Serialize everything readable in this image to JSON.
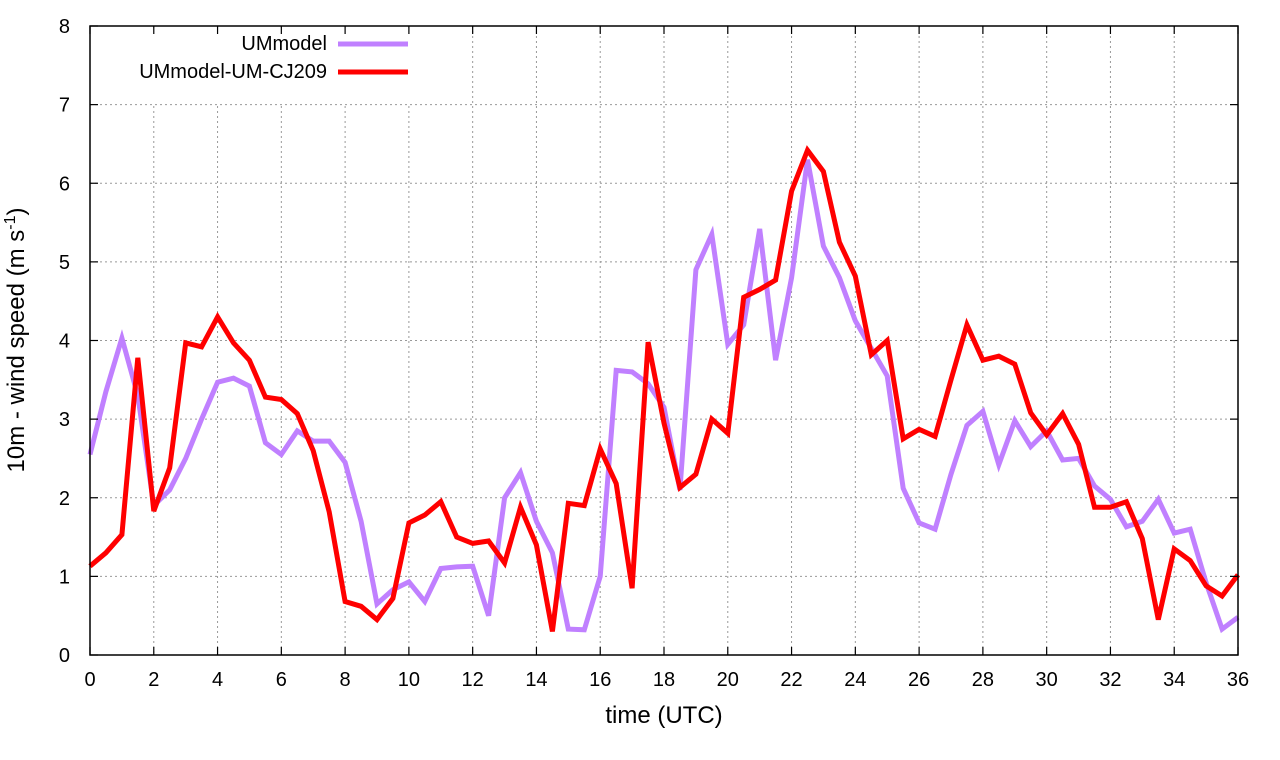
{
  "chart_data": {
    "type": "line",
    "title": "",
    "xlabel": "time (UTC)",
    "ylabel_main": "10m - wind speed  (m s",
    "ylabel_sup": "-1",
    "ylabel_end": ")",
    "xlim": [
      0,
      36
    ],
    "ylim": [
      0,
      8
    ],
    "xticks": [
      "0",
      "2",
      "4",
      "6",
      "8",
      "10",
      "12",
      "14",
      "16",
      "18",
      "20",
      "22",
      "24",
      "26",
      "28",
      "30",
      "32",
      "34",
      "36"
    ],
    "yticks": [
      "0",
      "1",
      "2",
      "3",
      "4",
      "5",
      "6",
      "7",
      "8"
    ],
    "grid": true,
    "legend_position": "top-left",
    "x_step": 0.5,
    "series": [
      {
        "name": "UMmodel",
        "color": "#c080ff",
        "values": [
          2.55,
          3.35,
          4.03,
          3.3,
          1.9,
          2.1,
          2.5,
          3.0,
          3.47,
          3.52,
          3.42,
          2.7,
          2.55,
          2.85,
          2.72,
          2.72,
          2.45,
          1.7,
          0.65,
          0.83,
          0.93,
          0.68,
          1.1,
          1.12,
          1.13,
          0.5,
          2.0,
          2.32,
          1.7,
          1.3,
          0.33,
          0.32,
          1.0,
          3.62,
          3.6,
          3.45,
          3.15,
          2.1,
          4.9,
          5.35,
          3.95,
          4.2,
          5.42,
          3.75,
          4.8,
          6.3,
          5.2,
          4.8,
          4.25,
          3.9,
          3.55,
          2.12,
          1.68,
          1.6,
          2.3,
          2.92,
          3.1,
          2.42,
          2.98,
          2.65,
          2.85,
          2.48,
          2.5,
          2.15,
          1.98,
          1.63,
          1.7,
          1.98,
          1.55,
          1.6,
          0.92,
          0.33,
          0.48
        ]
      },
      {
        "name": "UMmodel-UM-CJ209",
        "color": "#ff0000",
        "values": [
          1.13,
          1.3,
          1.53,
          3.78,
          1.83,
          2.38,
          3.97,
          3.92,
          4.3,
          3.97,
          3.75,
          3.28,
          3.25,
          3.07,
          2.6,
          1.82,
          0.68,
          0.62,
          0.45,
          0.72,
          1.68,
          1.78,
          1.95,
          1.5,
          1.42,
          1.45,
          1.17,
          1.88,
          1.4,
          0.3,
          1.93,
          1.9,
          2.62,
          2.18,
          0.85,
          3.98,
          2.95,
          2.13,
          2.3,
          3.0,
          2.82,
          4.55,
          4.65,
          4.77,
          5.9,
          6.42,
          6.15,
          5.25,
          4.82,
          3.82,
          4.0,
          2.75,
          2.87,
          2.78,
          3.5,
          4.2,
          3.75,
          3.8,
          3.7,
          3.08,
          2.8,
          3.07,
          2.68,
          1.88,
          1.88,
          1.95,
          1.48,
          0.45,
          1.35,
          1.2,
          0.88,
          0.75,
          1.02
        ]
      }
    ]
  }
}
